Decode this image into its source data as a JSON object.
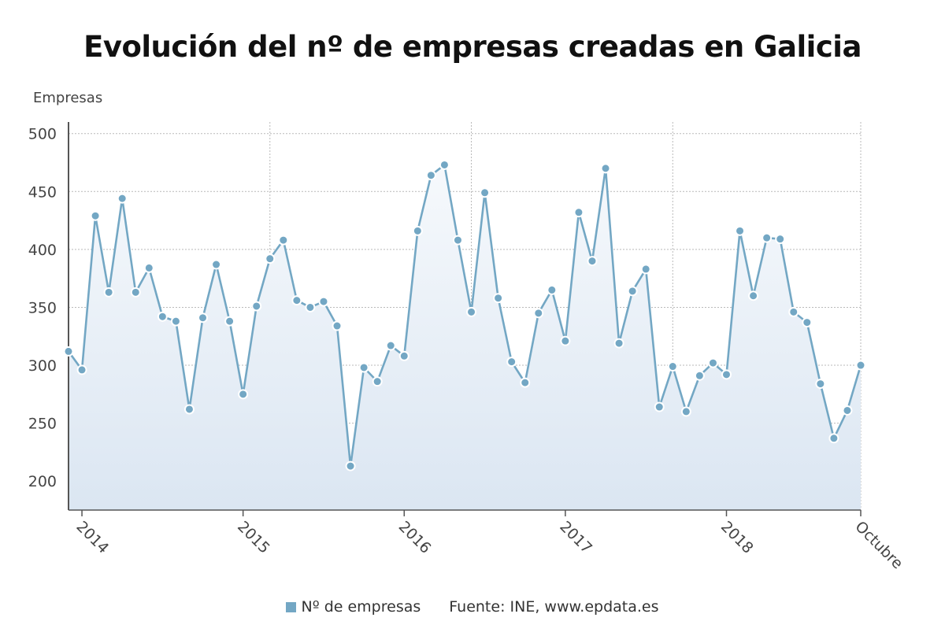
{
  "title": "Evolución del nº de empresas creadas en Galicia",
  "legend": {
    "series_label": "Nº de empresas",
    "source": "Fuente: INE, www.epdata.es"
  },
  "colors": {
    "line": "#73a7c4",
    "marker": "#73a7c4",
    "grid": "#b9b9b9",
    "area_top": "#f4f7fb",
    "area_bottom": "#dde8f3"
  },
  "chart_data": {
    "type": "line",
    "title": "Evolución del nº de empresas creadas en Galicia",
    "ylabel": "Empresas",
    "xlabel": "",
    "ylim": [
      175,
      510
    ],
    "yticks": [
      200,
      250,
      300,
      350,
      400,
      450,
      500
    ],
    "grid": true,
    "x_tick_labels": [
      "2014",
      "2015",
      "2016",
      "2017",
      "2018",
      "Octubre"
    ],
    "x_tick_index": [
      1,
      13,
      25,
      37,
      49,
      59
    ],
    "series": [
      {
        "name": "Nº de empresas",
        "values": [
          312,
          296,
          429,
          363,
          444,
          363,
          384,
          342,
          338,
          262,
          341,
          387,
          338,
          275,
          351,
          392,
          408,
          356,
          350,
          355,
          334,
          213,
          298,
          286,
          317,
          308,
          416,
          464,
          473,
          408,
          346,
          449,
          358,
          303,
          285,
          345,
          365,
          321,
          432,
          390,
          470,
          319,
          364,
          383,
          264,
          299,
          260,
          291,
          302,
          292,
          416,
          360,
          410,
          409,
          346,
          337,
          284,
          237,
          261,
          300
        ]
      }
    ]
  }
}
